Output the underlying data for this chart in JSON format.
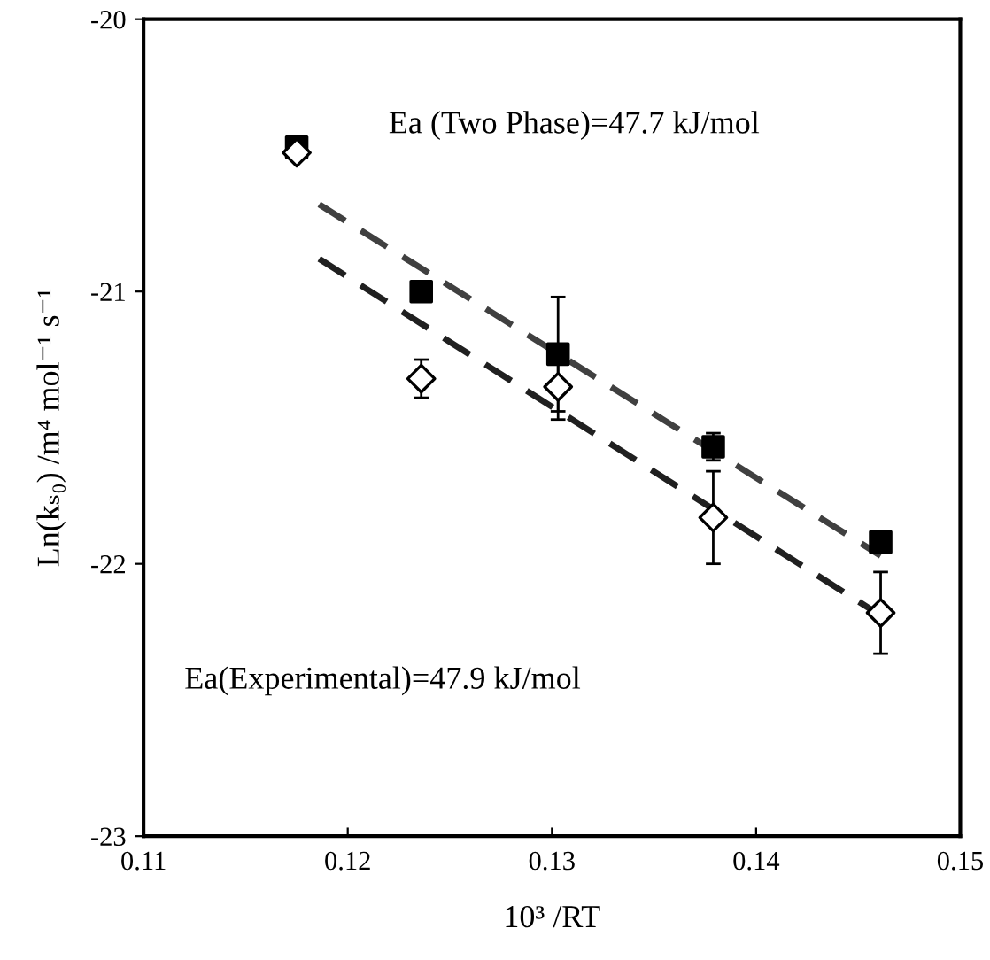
{
  "chart_data": {
    "type": "scatter",
    "xlabel": "10³ /RT",
    "ylabel": "Ln(kₛ₀) /m⁴ mol⁻¹ s⁻¹",
    "annotations": [
      "Ea (Two Phase)=47.7 kJ/mol",
      "Ea(Experimental)=47.9 kJ/mol"
    ],
    "xlim": [
      0.11,
      0.15
    ],
    "xticks": [
      0.11,
      0.12,
      0.13,
      0.14,
      0.15
    ],
    "ylim": [
      -23,
      -20
    ],
    "yticks": [
      -23,
      -22,
      -21,
      -20
    ],
    "grid": false,
    "legend": false,
    "series": [
      {
        "type": "line",
        "color": "#404040",
        "line_style": "dashed",
        "marker": "none",
        "x": [
          0.1186,
          0.1461
        ],
        "values": [
          -20.68,
          -21.97
        ]
      },
      {
        "type": "line",
        "color": "#202020",
        "line_style": "dashed",
        "marker": "none",
        "x": [
          0.1186,
          0.1461
        ],
        "values": [
          -20.88,
          -22.19
        ]
      },
      {
        "color": "#000000",
        "marker": "square",
        "x": [
          0.1175,
          0.1236,
          0.1303,
          0.1379,
          0.1461
        ],
        "values": [
          -20.47,
          -21.0,
          -21.23,
          -21.57,
          -21.92
        ],
        "errors": [
          null,
          null,
          0.21,
          0.05,
          null
        ]
      },
      {
        "color": "#ffffff",
        "marker": "diamond",
        "x": [
          0.1175,
          0.1236,
          0.1303,
          0.1379,
          0.1461
        ],
        "values": [
          -20.49,
          -21.32,
          -21.35,
          -21.83,
          -22.18
        ],
        "errors": [
          null,
          0.07,
          0.12,
          0.17,
          0.15
        ]
      }
    ]
  }
}
